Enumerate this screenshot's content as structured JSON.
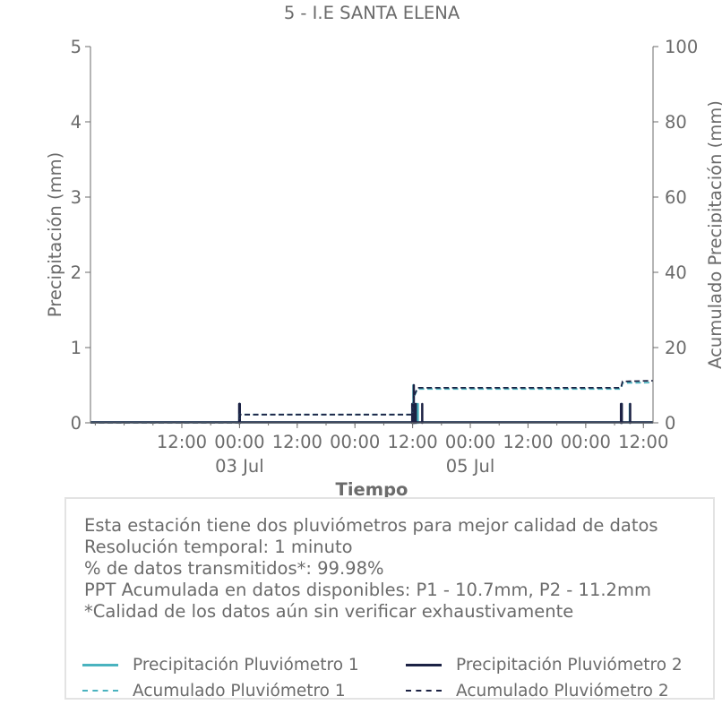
{
  "chart_data": {
    "type": "line",
    "title": "5 - I.E SANTA ELENA",
    "xlabel": "Tiempo",
    "ylabel": "Precipitación (mm)",
    "y2label": "Acumulado Precipitación (mm)",
    "xlim": [
      "2024-07-01T17:00",
      "2024-07-06T14:00"
    ],
    "ylim": [
      0,
      5
    ],
    "y2lim": [
      0,
      100
    ],
    "yticks": [
      0,
      1,
      2,
      3,
      4,
      5
    ],
    "y2ticks": [
      0,
      20,
      40,
      60,
      80,
      100
    ],
    "xticks": [
      {
        "at": "2024-07-02T12:00",
        "label": "12:00",
        "sublabel": ""
      },
      {
        "at": "2024-07-03T00:00",
        "label": "00:00",
        "sublabel": "03 Jul"
      },
      {
        "at": "2024-07-03T12:00",
        "label": "12:00",
        "sublabel": ""
      },
      {
        "at": "2024-07-04T00:00",
        "label": "00:00",
        "sublabel": ""
      },
      {
        "at": "2024-07-04T12:00",
        "label": "12:00",
        "sublabel": ""
      },
      {
        "at": "2024-07-05T00:00",
        "label": "00:00",
        "sublabel": "05 Jul"
      },
      {
        "at": "2024-07-05T12:00",
        "label": "12:00",
        "sublabel": ""
      },
      {
        "at": "2024-07-06T00:00",
        "label": "00:00",
        "sublabel": ""
      },
      {
        "at": "2024-07-06T12:00",
        "label": "12:00",
        "sublabel": ""
      }
    ],
    "grid": false,
    "series": [
      {
        "name": "Precipitación Pluviómetro 1",
        "axis": "left",
        "style": "bars",
        "color": "#4ab3bf",
        "events": [
          {
            "t": "2024-07-02T23:58",
            "v": 0.25
          },
          {
            "t": "2024-07-03T00:00",
            "v": 0.25
          },
          {
            "t": "2024-07-03T00:02",
            "v": 0.25
          },
          {
            "t": "2024-07-04T11:58",
            "v": 0.25
          },
          {
            "t": "2024-07-04T12:05",
            "v": 0.25
          },
          {
            "t": "2024-07-04T12:10",
            "v": 0.5
          },
          {
            "t": "2024-07-04T12:20",
            "v": 0.25
          },
          {
            "t": "2024-07-04T12:45",
            "v": 0.25
          },
          {
            "t": "2024-07-04T13:05",
            "v": 0.25
          },
          {
            "t": "2024-07-06T07:25",
            "v": 0.25
          },
          {
            "t": "2024-07-06T07:30",
            "v": 0.25
          },
          {
            "t": "2024-07-06T09:10",
            "v": 0.25
          }
        ]
      },
      {
        "name": "Precipitación Pluviómetro 2",
        "axis": "left",
        "style": "bars",
        "color": "#1c2244",
        "events": [
          {
            "t": "2024-07-02T23:56",
            "v": 0.25
          },
          {
            "t": "2024-07-02T23:59",
            "v": 0.25
          },
          {
            "t": "2024-07-03T00:01",
            "v": 0.25
          },
          {
            "t": "2024-07-03T00:04",
            "v": 0.25
          },
          {
            "t": "2024-07-04T11:55",
            "v": 0.25
          },
          {
            "t": "2024-07-04T12:00",
            "v": 0.25
          },
          {
            "t": "2024-07-04T12:15",
            "v": 0.5
          },
          {
            "t": "2024-07-04T12:25",
            "v": 0.25
          },
          {
            "t": "2024-07-04T12:40",
            "v": 0.25
          },
          {
            "t": "2024-07-04T14:00",
            "v": 0.25
          },
          {
            "t": "2024-07-06T07:20",
            "v": 0.25
          },
          {
            "t": "2024-07-06T07:30",
            "v": 0.25
          },
          {
            "t": "2024-07-06T09:15",
            "v": 0.25
          }
        ]
      },
      {
        "name": "Acumulado Pluviómetro 1",
        "axis": "right",
        "style": "dashed",
        "color": "#4ab3bf",
        "points": [
          {
            "t": "2024-07-01T17:00",
            "v": 0
          },
          {
            "t": "2024-07-02T23:58",
            "v": 0
          },
          {
            "t": "2024-07-03T00:03",
            "v": 2.2
          },
          {
            "t": "2024-07-04T11:55",
            "v": 2.2
          },
          {
            "t": "2024-07-04T12:15",
            "v": 6.8
          },
          {
            "t": "2024-07-04T13:00",
            "v": 9.0
          },
          {
            "t": "2024-07-06T07:20",
            "v": 9.0
          },
          {
            "t": "2024-07-06T07:40",
            "v": 10.6
          },
          {
            "t": "2024-07-06T14:00",
            "v": 10.7
          }
        ]
      },
      {
        "name": "Acumulado Pluviómetro 2",
        "axis": "right",
        "style": "dashed",
        "color": "#1c2244",
        "points": [
          {
            "t": "2024-07-01T17:00",
            "v": 0
          },
          {
            "t": "2024-07-02T23:56",
            "v": 0
          },
          {
            "t": "2024-07-03T00:05",
            "v": 2.2
          },
          {
            "t": "2024-07-04T11:55",
            "v": 2.2
          },
          {
            "t": "2024-07-04T12:20",
            "v": 7.2
          },
          {
            "t": "2024-07-04T13:00",
            "v": 9.3
          },
          {
            "t": "2024-07-06T07:20",
            "v": 9.3
          },
          {
            "t": "2024-07-06T07:40",
            "v": 11.0
          },
          {
            "t": "2024-07-06T14:00",
            "v": 11.2
          }
        ]
      }
    ]
  },
  "info": {
    "lines": [
      "Esta estación tiene dos pluviómetros para mejor calidad de datos",
      "Resolución temporal: 1 minuto",
      "% de datos transmitidos*: 99.98%",
      "PPT Acumulada en datos disponibles: P1 - 10.7mm, P2 - 11.2mm",
      "*Calidad de los datos aún sin verificar exhaustivamente"
    ]
  },
  "legend": {
    "items": [
      {
        "label": "Precipitación Pluviómetro 1",
        "color": "#4ab3bf",
        "style": "solid"
      },
      {
        "label": "Precipitación Pluviómetro 2",
        "color": "#1c2244",
        "style": "solid"
      },
      {
        "label": "Acumulado Pluviómetro 1",
        "color": "#4ab3bf",
        "style": "dashed"
      },
      {
        "label": "Acumulado Pluviómetro 2",
        "color": "#1c2244",
        "style": "dashed"
      }
    ]
  }
}
